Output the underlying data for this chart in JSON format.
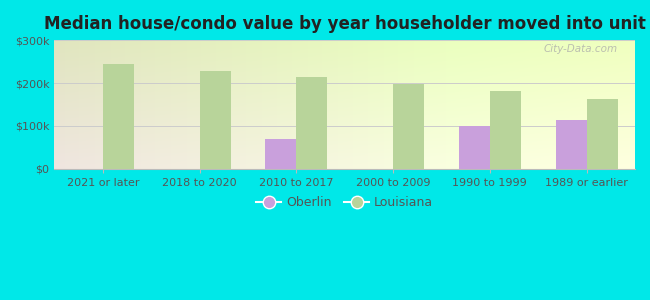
{
  "title": "Median house/condo value by year householder moved into unit",
  "categories": [
    "2021 or later",
    "2018 to 2020",
    "2010 to 2017",
    "2000 to 2009",
    "1990 to 1999",
    "1989 or earlier"
  ],
  "oberlin_values": [
    0,
    0,
    70000,
    0,
    100000,
    113000
  ],
  "louisiana_values": [
    245000,
    228000,
    213000,
    197000,
    182000,
    162000
  ],
  "oberlin_color": "#c9a0dc",
  "louisiana_color": "#b8d49a",
  "background_color": "#00e8e8",
  "ylim": [
    0,
    300000
  ],
  "yticks": [
    0,
    100000,
    200000,
    300000
  ],
  "ytick_labels": [
    "$0",
    "$100k",
    "$200k",
    "$300k"
  ],
  "bar_width": 0.32,
  "watermark": "City-Data.com",
  "legend_labels": [
    "Oberlin",
    "Louisiana"
  ],
  "title_fontsize": 12,
  "tick_fontsize": 8
}
